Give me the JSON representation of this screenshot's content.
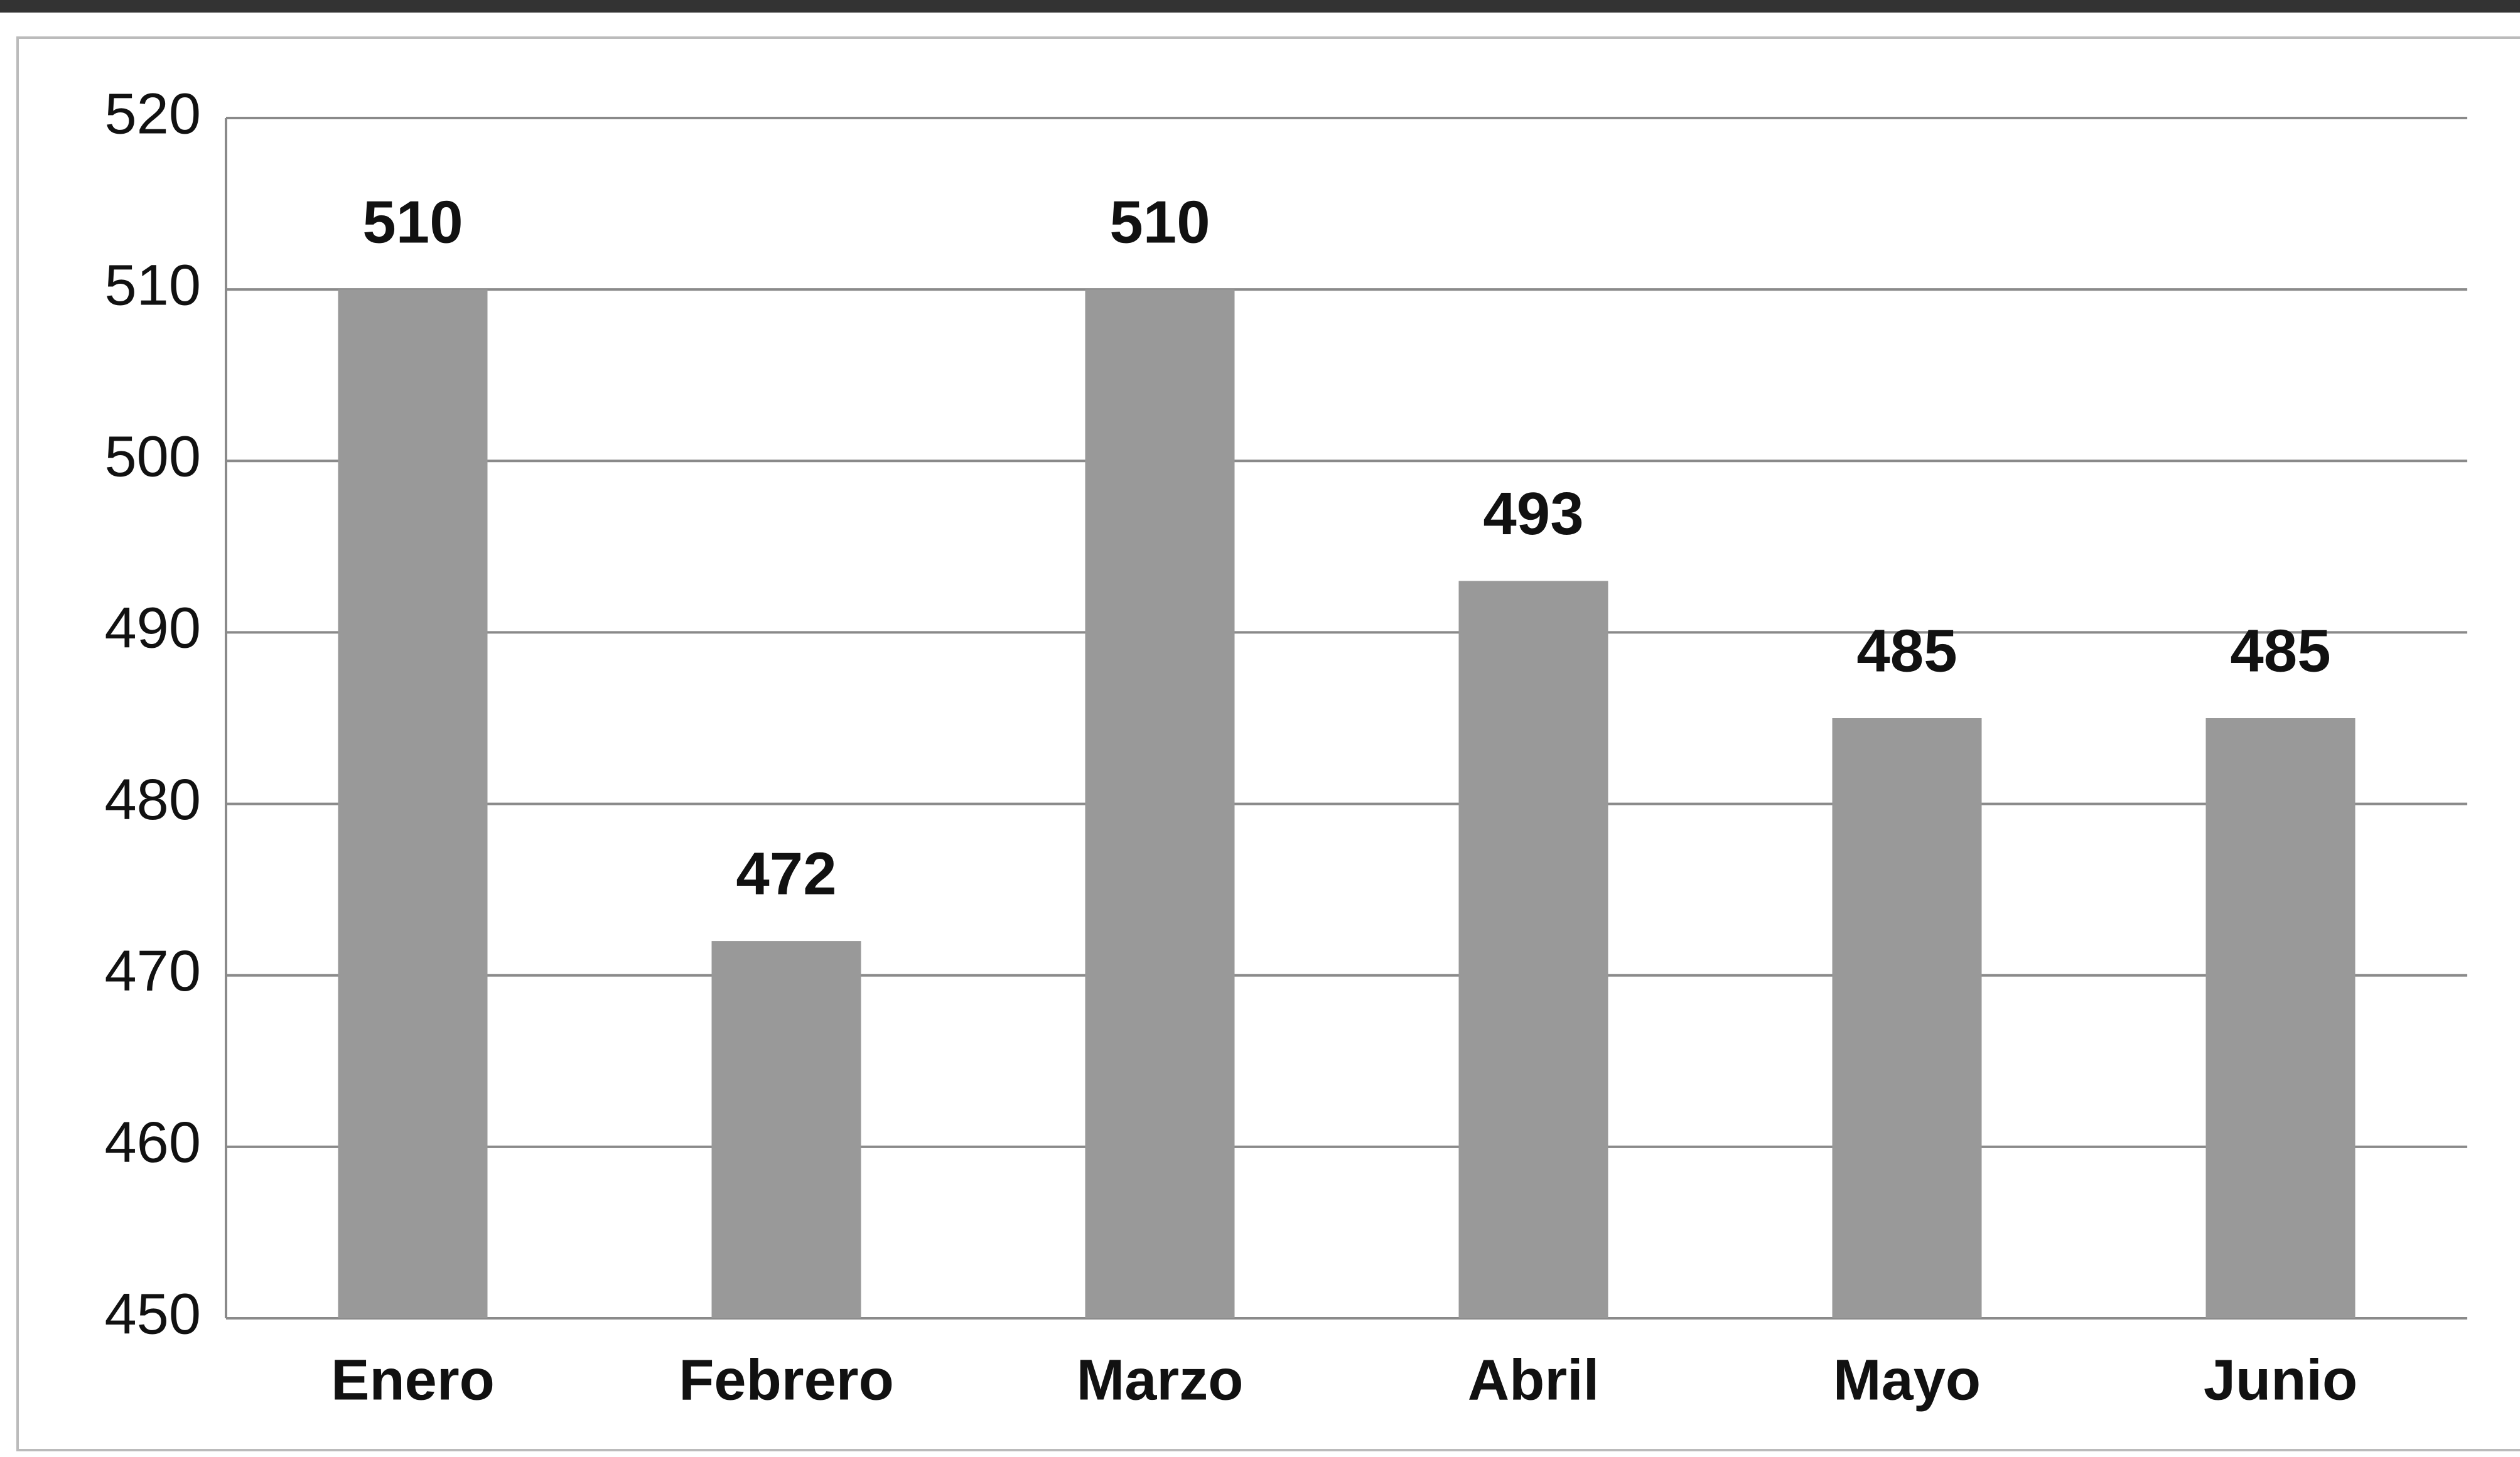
{
  "chart_data": {
    "type": "bar",
    "categories": [
      "Enero",
      "Febrero",
      "Marzo",
      "Abril",
      "Mayo",
      "Junio"
    ],
    "values": [
      510,
      472,
      510,
      493,
      485,
      485
    ],
    "color": "#999999",
    "ylim": [
      450,
      520
    ],
    "yticks": [
      450,
      460,
      470,
      480,
      490,
      500,
      510,
      520
    ],
    "grid": true
  }
}
